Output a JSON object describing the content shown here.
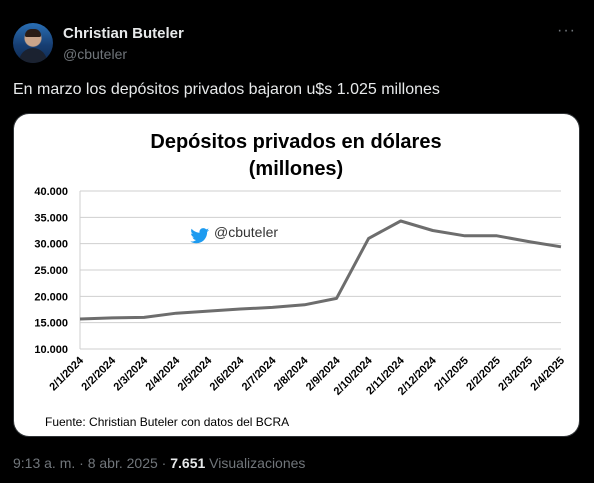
{
  "author": {
    "name": "Christian Buteler",
    "handle": "@cbuteler"
  },
  "more_label": "···",
  "tweet_text": "En marzo los depósitos privados bajaron u$s 1.025 millones",
  "chart_data": {
    "type": "line",
    "title_line1": "Depósitos privados en dólares",
    "title_line2": "(millones)",
    "watermark": "@cbuteler",
    "source": "Fuente: Christian Buteler con datos del BCRA",
    "ylim": [
      10000,
      40000
    ],
    "y_ticks": [
      {
        "value": 40000,
        "label": "40.000"
      },
      {
        "value": 35000,
        "label": "35.000"
      },
      {
        "value": 30000,
        "label": "30.000"
      },
      {
        "value": 25000,
        "label": "25.000"
      },
      {
        "value": 20000,
        "label": "20.000"
      },
      {
        "value": 15000,
        "label": "15.000"
      },
      {
        "value": 10000,
        "label": "10.000"
      }
    ],
    "x_ticks": [
      "2/1/2024",
      "2/2/2024",
      "2/3/2024",
      "2/4/2024",
      "2/5/2024",
      "2/6/2024",
      "2/7/2024",
      "2/8/2024",
      "2/9/2024",
      "2/10/2024",
      "2/11/2024",
      "2/12/2024",
      "2/1/2025",
      "2/2/2025",
      "2/3/2025",
      "2/4/2025"
    ],
    "series": [
      {
        "color": "#6d6d6d",
        "points": [
          [
            "2/1/2024",
            15700
          ],
          [
            "2/2/2024",
            15900
          ],
          [
            "2/3/2024",
            16000
          ],
          [
            "2/4/2024",
            16800
          ],
          [
            "2/5/2024",
            17200
          ],
          [
            "2/6/2024",
            17600
          ],
          [
            "2/7/2024",
            17900
          ],
          [
            "2/8/2024",
            18400
          ],
          [
            "2/9/2024",
            19600
          ],
          [
            "2/10/2024",
            31000
          ],
          [
            "2/11/2024",
            34300
          ],
          [
            "2/12/2024",
            32500
          ],
          [
            "2/1/2025",
            31500
          ],
          [
            "2/2/2025",
            31500
          ],
          [
            "2/3/2025",
            30400
          ],
          [
            "2/4/2025",
            29400
          ]
        ]
      }
    ]
  },
  "meta": {
    "time": "9:13 a. m.",
    "separator": "·",
    "date": "8 abr. 2025",
    "views_count": "7.651",
    "views_label": "Visualizaciones"
  }
}
